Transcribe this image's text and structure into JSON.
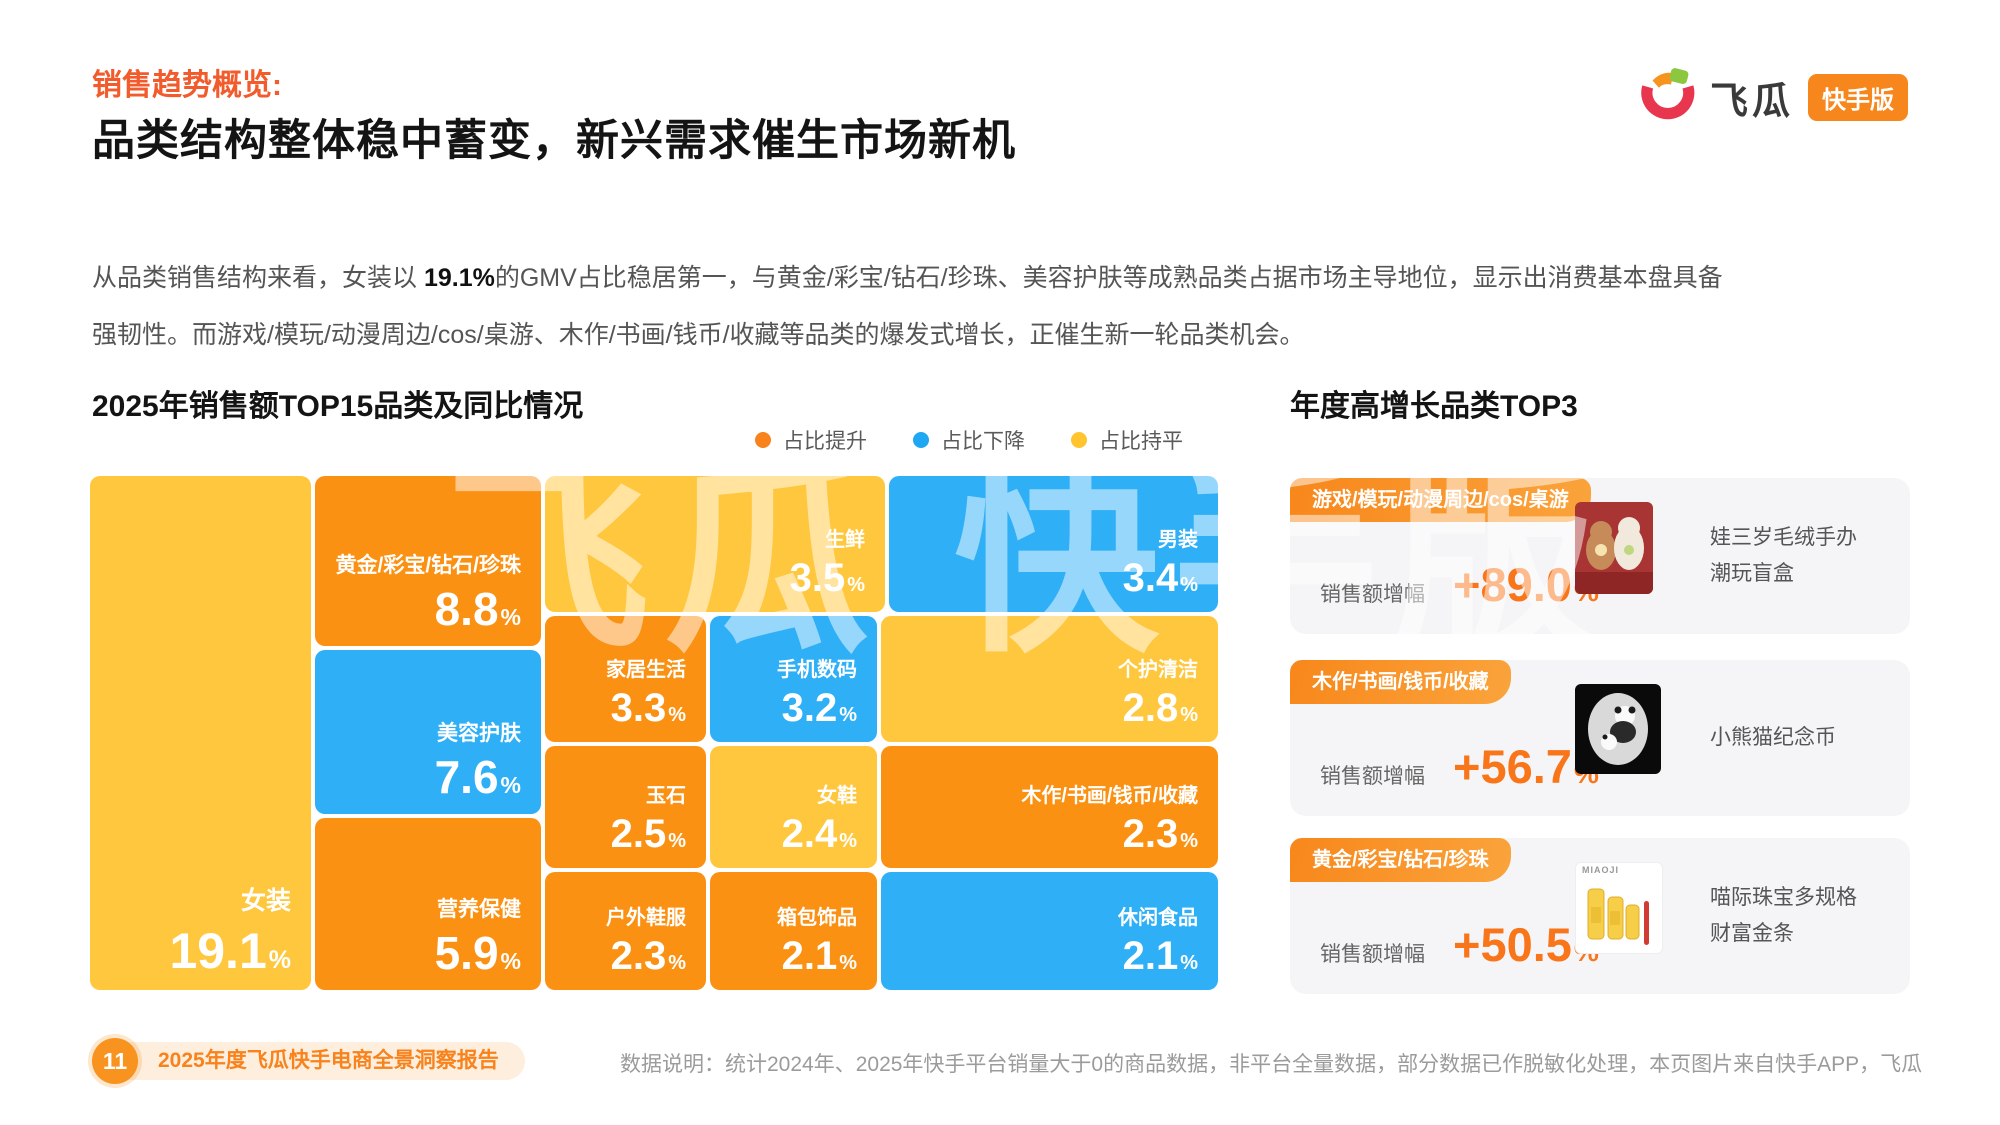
{
  "header": {
    "kicker": "销售趋势概览:",
    "title": "品类结构整体稳中蓄变，新兴需求催生市场新机",
    "logo": {
      "brand": "飞瓜",
      "badge": "快手版"
    }
  },
  "intro": {
    "line1_pre": "从品类销售结构来看，女装以 ",
    "highlight": "19.1%",
    "line1_post": "的GMV占比稳居第一，与黄金/彩宝/钻石/珍珠、美容护肤等成熟品类占据市场主导地位，显示出消费基本盘具备",
    "line2": "强韧性。而游戏/模玩/动漫周边/cos/桌游、木作/书画/钱币/收藏等品类的爆发式增长，正催生新一轮品类机会。"
  },
  "treemap_section": {
    "title": "2025年销售额TOP15品类及同比情况"
  },
  "chart_data": {
    "type": "treemap",
    "title": "2025年销售额TOP15品类及同比情况",
    "unit": "%",
    "legend": [
      {
        "label": "占比提升",
        "color": "#F8821B"
      },
      {
        "label": "占比下降",
        "color": "#1FA7F4"
      },
      {
        "label": "占比持平",
        "color": "#FFC42E"
      }
    ],
    "colors": {
      "占比提升": "#FB9113",
      "占比下降": "#2EAFF6",
      "占比持平": "#FFC73E"
    },
    "items": [
      {
        "name": "女装",
        "value": "19.1",
        "trend": "占比持平"
      },
      {
        "name": "黄金/彩宝/钻石/珍珠",
        "value": "8.8",
        "trend": "占比提升"
      },
      {
        "name": "美容护肤",
        "value": "7.6",
        "trend": "占比下降"
      },
      {
        "name": "营养保健",
        "value": "5.9",
        "trend": "占比提升"
      },
      {
        "name": "生鲜",
        "value": "3.5",
        "trend": "占比持平"
      },
      {
        "name": "男装",
        "value": "3.4",
        "trend": "占比下降"
      },
      {
        "name": "家居生活",
        "value": "3.3",
        "trend": "占比提升"
      },
      {
        "name": "手机数码",
        "value": "3.2",
        "trend": "占比下降"
      },
      {
        "name": "个护清洁",
        "value": "2.8",
        "trend": "占比持平"
      },
      {
        "name": "玉石",
        "value": "2.5",
        "trend": "占比提升"
      },
      {
        "name": "女鞋",
        "value": "2.4",
        "trend": "占比持平"
      },
      {
        "name": "木作/书画/钱币/收藏",
        "value": "2.3",
        "trend": "占比提升"
      },
      {
        "name": "户外鞋服",
        "value": "2.3",
        "trend": "占比提升"
      },
      {
        "name": "箱包饰品",
        "value": "2.1",
        "trend": "占比提升"
      },
      {
        "name": "休闲食品",
        "value": "2.1",
        "trend": "占比下降"
      }
    ]
  },
  "top3": {
    "title": "年度高增长品类TOP3",
    "metric_label": "销售额增幅",
    "unit": "%",
    "cards": [
      {
        "tag": "游戏/模玩/动漫周边/cos/桌游",
        "growth": "+89.0",
        "image": "plush-toy-blindbox-photo",
        "product": [
          "娃三岁毛绒手办",
          "潮玩盲盒"
        ]
      },
      {
        "tag": "木作/书画/钱币/收藏",
        "growth": "+56.7",
        "image": "panda-coin-photo",
        "product": [
          "小熊猫纪念币"
        ]
      },
      {
        "tag": "黄金/彩宝/钻石/珍珠",
        "growth": "+50.5",
        "image": "gold-bars-photo",
        "image_caption": "MIAOJI",
        "product": [
          "喵际珠宝多规格",
          "财富金条"
        ]
      }
    ]
  },
  "watermark": "飞瓜 快手版",
  "footer": {
    "page": "11",
    "report": "2025年度飞瓜快手电商全景洞察报告",
    "note": "数据说明：统计2024年、2025年快手平台销量大于0的商品数据，非平台全量数据，部分数据已作脱敏化处理，本页图片来自快手APP，飞瓜"
  }
}
